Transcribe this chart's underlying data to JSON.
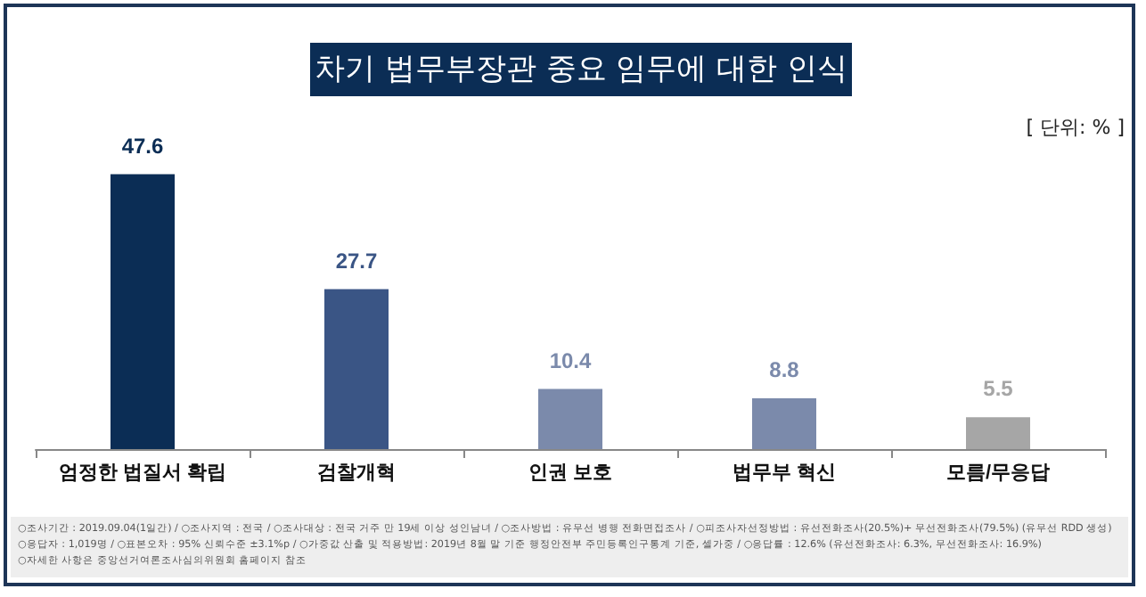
{
  "chart_data": {
    "type": "bar",
    "title": "차기 법무부장관 중요 임무에 대한 인식",
    "categories": [
      "엄정한 법질서 확립",
      "검찰개혁",
      "인권 보호",
      "법무부 혁신",
      "모름/무응답"
    ],
    "values": [
      47.6,
      27.7,
      10.4,
      8.8,
      5.5
    ],
    "colors": [
      "#0b2d55",
      "#3a5585",
      "#7b8aab",
      "#7b8aab",
      "#a6a6a6"
    ],
    "data_labels": true,
    "annotations": [
      "[ 단위: % ]",
      "○조사기간 : 2019.09.04(1일간) / ○조사지역 : 전국 / ○조사대상 : 전국 거주 만 19세 이상 성인남녀 / ○조사방법 : 유무선 병행 전화면접조사 / ○피조사자선정방법 : 유선전화조사(20.5%)+ 무선전화조사(79.5%) (유무선 RDD 생성)",
      "○응답자 : 1,019명 / ○표본오차 : 95% 신뢰수준 ±3.1%p / ○가중값 산출 및 적용방법: 2019년 8월 말 기준 행정안전부 주민등록인구통계 기준, 셀가중 / ○응답률 : 12.6% (유선전화조사: 6.3%, 무선전화조사: 16.9%)",
      "○자세한 사항은 중앙선거여론조사심의위원회 홈페이지 참조"
    ]
  }
}
